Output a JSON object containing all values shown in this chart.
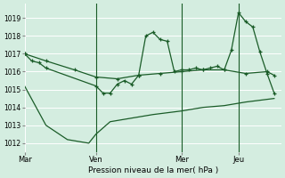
{
  "xlabel": "Pression niveau de la mer( hPa )",
  "background_color": "#d4ede0",
  "grid_color": "#ffffff",
  "line_color": "#1a5c28",
  "ylim": [
    1011.5,
    1019.8
  ],
  "yticks": [
    1012,
    1013,
    1014,
    1015,
    1016,
    1017,
    1018,
    1019
  ],
  "xtick_labels": [
    "Mar",
    "Ven",
    "Mer",
    "Jeu"
  ],
  "xtick_positions": [
    0,
    10,
    22,
    30
  ],
  "xlim": [
    0,
    36
  ],
  "vline_positions": [
    10,
    22,
    30
  ],
  "line1_x": [
    0,
    1,
    2,
    3,
    10,
    11,
    12,
    13,
    14,
    15,
    16,
    17,
    18,
    19,
    20,
    21,
    22,
    23,
    24,
    25,
    26,
    27,
    28,
    29,
    30,
    31,
    32,
    33,
    34,
    35
  ],
  "line1_y": [
    1017.0,
    1016.6,
    1016.5,
    1016.2,
    1015.2,
    1014.8,
    1014.8,
    1015.3,
    1015.5,
    1015.3,
    1015.8,
    1018.0,
    1018.2,
    1017.8,
    1017.7,
    1016.0,
    1016.1,
    1016.1,
    1016.2,
    1016.1,
    1016.2,
    1016.3,
    1016.1,
    1017.2,
    1019.3,
    1018.8,
    1018.5,
    1017.1,
    1015.9,
    1014.8
  ],
  "line2_x": [
    0,
    3,
    7,
    10,
    13,
    16,
    19,
    22,
    25,
    28,
    31,
    34,
    35
  ],
  "line2_y": [
    1017.0,
    1016.6,
    1016.1,
    1015.7,
    1015.6,
    1015.8,
    1015.9,
    1016.0,
    1016.1,
    1016.1,
    1015.9,
    1016.0,
    1015.8
  ],
  "line3_x": [
    0,
    3,
    6,
    9,
    10,
    12,
    15,
    18,
    22,
    25,
    28,
    31,
    35
  ],
  "line3_y": [
    1015.2,
    1013.0,
    1012.2,
    1012.0,
    1012.5,
    1013.2,
    1013.4,
    1013.6,
    1013.8,
    1014.0,
    1014.1,
    1014.3,
    1014.5
  ]
}
